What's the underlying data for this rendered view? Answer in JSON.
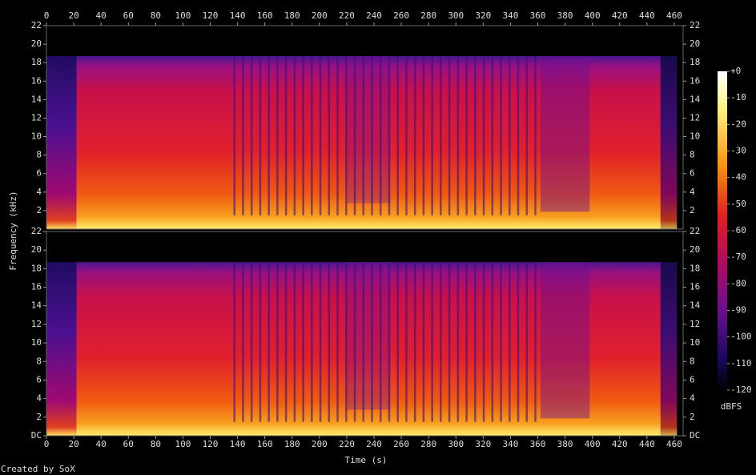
{
  "chart_data": {
    "type": "spectrogram",
    "x_label": "Time (s)",
    "y_label": "Frequency (kHz)",
    "xlim": [
      0,
      466.5
    ],
    "xticks": [
      0,
      20,
      40,
      60,
      80,
      100,
      120,
      140,
      160,
      180,
      200,
      220,
      240,
      260,
      280,
      300,
      320,
      340,
      360,
      380,
      400,
      420,
      440,
      460
    ],
    "panels": [
      {
        "ylim": [
          0,
          22
        ],
        "yticks": [
          2,
          4,
          6,
          8,
          10,
          12,
          14,
          16,
          18,
          20,
          22
        ]
      },
      {
        "ylim": [
          0,
          22
        ],
        "yticks": [
          {
            "value": 0,
            "label": "DC"
          },
          2,
          4,
          6,
          8,
          10,
          12,
          14,
          16,
          18,
          20,
          22
        ]
      }
    ],
    "colorbar": {
      "label": "dBFS",
      "lim": [
        -120,
        0
      ],
      "ticks": [
        {
          "value": 0,
          "label": "+0"
        },
        -10,
        -20,
        -30,
        -40,
        -50,
        -60,
        -70,
        -80,
        -90,
        -100,
        -110,
        -120
      ]
    },
    "footer": "Created by SoX"
  }
}
